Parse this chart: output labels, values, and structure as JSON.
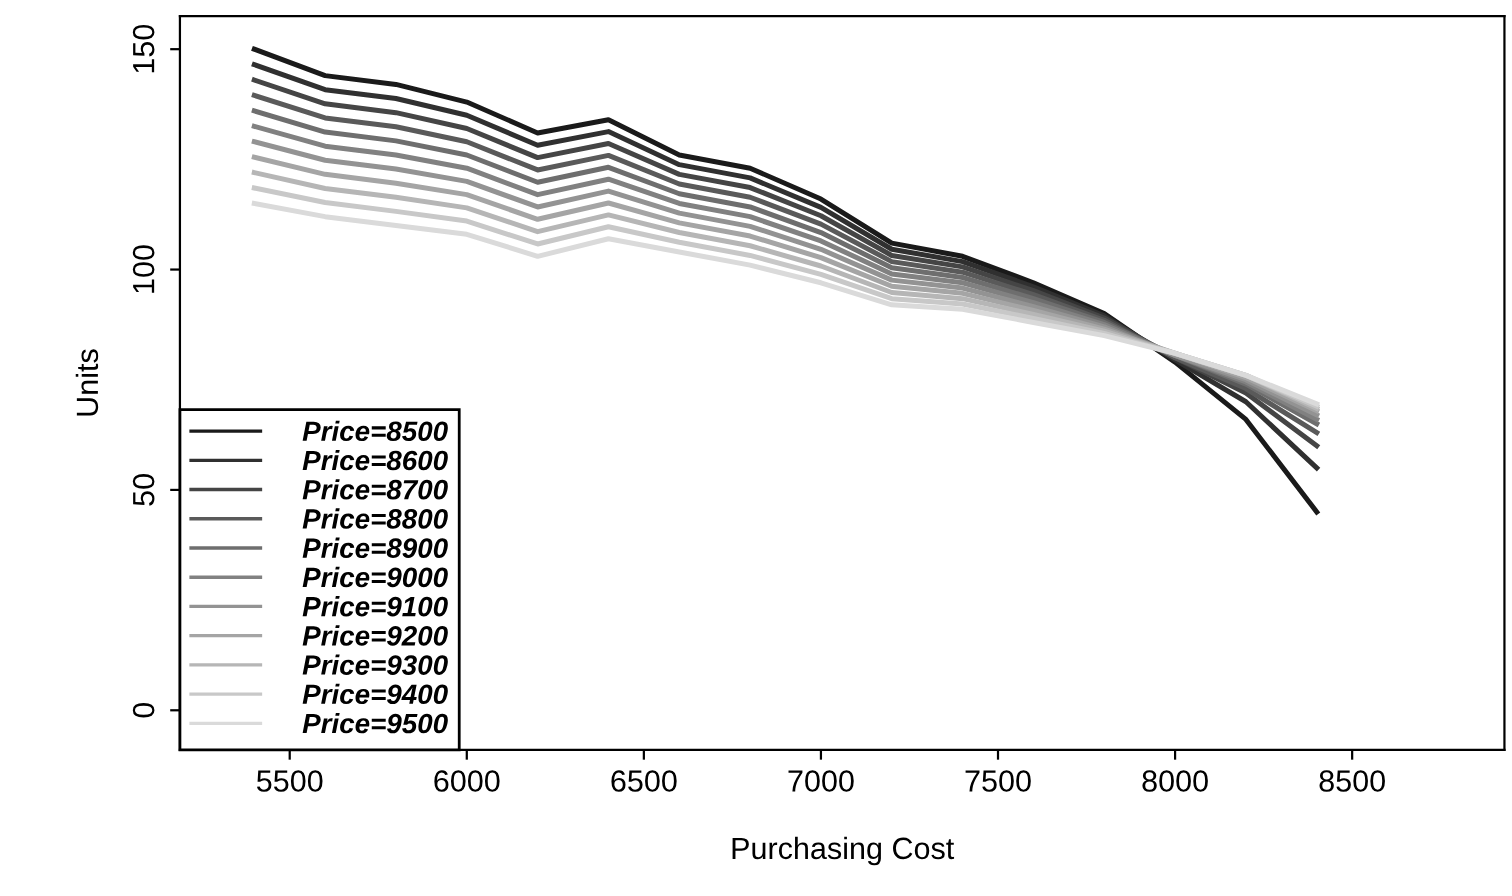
{
  "chart_data": {
    "type": "line",
    "xlabel": "Purchasing Cost",
    "ylabel": "Units",
    "x": [
      5400,
      5600,
      5800,
      6000,
      6200,
      6400,
      6600,
      6800,
      7000,
      7200,
      7400,
      7600,
      7800,
      8000,
      8200,
      8400
    ],
    "xlim": [
      5190,
      8930
    ],
    "ylim": [
      -9,
      157.5
    ],
    "xticks": [
      5500,
      6000,
      6500,
      7000,
      7500,
      8000,
      8500
    ],
    "yticks": [
      0,
      50,
      100,
      150
    ],
    "grid": false,
    "legend": "bottom left",
    "marker": "none",
    "line_style": "solid",
    "series": [
      {
        "name": "Price=8500",
        "color": "#1a1a1a",
        "values": [
          150,
          144,
          142,
          138,
          131,
          134,
          126,
          123,
          116,
          106,
          103,
          97,
          90,
          79,
          66,
          45
        ]
      },
      {
        "name": "Price=8600",
        "color": "#303030",
        "values": [
          146.5,
          140.8,
          138.8,
          135,
          128.2,
          131.3,
          123.8,
          120.8,
          114.1,
          104.6,
          101.8,
          96.1,
          89.5,
          79.5,
          70,
          55
        ]
      },
      {
        "name": "Price=8700",
        "color": "#454545",
        "values": [
          143,
          137.6,
          135.6,
          132,
          125.4,
          128.6,
          121.6,
          118.6,
          112.2,
          103.2,
          100.6,
          95.2,
          89,
          80,
          72,
          60
        ]
      },
      {
        "name": "Price=8800",
        "color": "#5a5a5a",
        "values": [
          139.5,
          134.4,
          132.4,
          129,
          122.6,
          125.9,
          119.4,
          116.4,
          110.3,
          101.8,
          99.4,
          94.3,
          88.5,
          80,
          73,
          63
        ]
      },
      {
        "name": "Price=8900",
        "color": "#6e6e6e",
        "values": [
          136,
          131.2,
          129.2,
          126,
          119.8,
          123.2,
          117.2,
          114.2,
          108.4,
          100.4,
          98.2,
          93.4,
          88,
          80.5,
          74,
          65
        ]
      },
      {
        "name": "Price=9000",
        "color": "#818181",
        "values": [
          132.5,
          128,
          126,
          123,
          117,
          120.5,
          115,
          112,
          106.5,
          99,
          97,
          92.5,
          87.5,
          80.5,
          74.5,
          66
        ]
      },
      {
        "name": "Price=9100",
        "color": "#939393",
        "values": [
          129,
          124.8,
          122.8,
          120,
          114.2,
          117.8,
          112.8,
          109.8,
          104.6,
          97.6,
          95.8,
          91.6,
          87,
          80.5,
          75,
          67
        ]
      },
      {
        "name": "Price=9200",
        "color": "#a5a5a5",
        "values": [
          125.5,
          121.6,
          119.6,
          117,
          111.4,
          115.1,
          110.6,
          107.6,
          102.7,
          96.2,
          94.6,
          90.7,
          86.5,
          81,
          75.5,
          68
        ]
      },
      {
        "name": "Price=9300",
        "color": "#b6b6b6",
        "values": [
          122,
          118.4,
          116.4,
          114,
          108.6,
          112.4,
          108.4,
          105.4,
          100.8,
          94.8,
          93.4,
          89.8,
          86,
          81,
          76,
          68.5
        ]
      },
      {
        "name": "Price=9400",
        "color": "#c8c8c8",
        "values": [
          118.5,
          115.2,
          113.2,
          111,
          105.8,
          109.7,
          106.2,
          103.2,
          98.9,
          93.4,
          92.2,
          88.9,
          85.5,
          81,
          76,
          69
        ]
      },
      {
        "name": "Price=9500",
        "color": "#dadada",
        "values": [
          115,
          112,
          110,
          108,
          103,
          107,
          104,
          101,
          97,
          92,
          91,
          88,
          85,
          81,
          76,
          69.5
        ]
      }
    ]
  }
}
